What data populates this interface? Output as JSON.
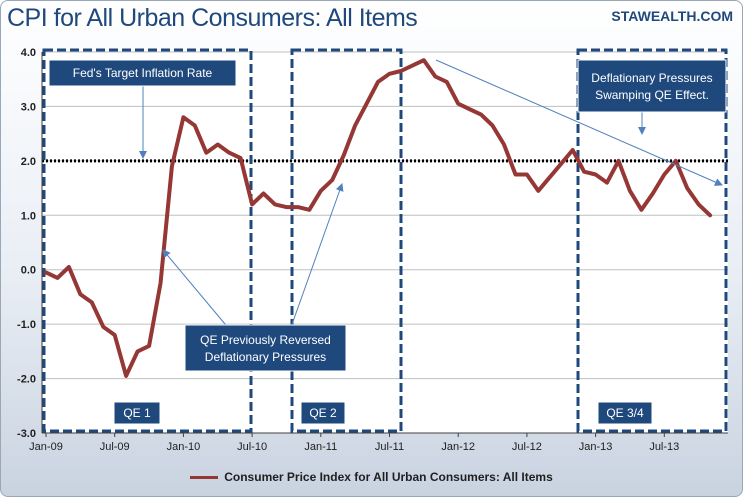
{
  "header": {
    "title": "CPI for All Urban Consumers: All Items",
    "brand": "STAWEALTH.COM"
  },
  "colors": {
    "line": "#953735",
    "axis_label": "#1f497d",
    "annotation_fill": "#1f497d",
    "dashed_box": "#1f497d",
    "arrow": "#4f81bd",
    "target_line": "#000000"
  },
  "legend": {
    "label": "Consumer Price Index for All Urban Consumers: All Items"
  },
  "chart_data": {
    "type": "line",
    "title": "CPI for All Urban Consumers: All Items",
    "xlabel": "",
    "ylabel": "",
    "ylim": [
      -3.0,
      4.0
    ],
    "grid": true,
    "y_ticks": [
      "4.0",
      "3.0",
      "2.0",
      "1.0",
      "0.0",
      "-1.0",
      "-2.0",
      "-3.0"
    ],
    "x_ticks": [
      {
        "label": "Jan-09",
        "index": 0
      },
      {
        "label": "Jul-09",
        "index": 6
      },
      {
        "label": "Jan-10",
        "index": 12
      },
      {
        "label": "Jul-10",
        "index": 18
      },
      {
        "label": "Jan-11",
        "index": 24
      },
      {
        "label": "Jul-11",
        "index": 30
      },
      {
        "label": "Jan-12",
        "index": 36
      },
      {
        "label": "Jul-12",
        "index": 42
      },
      {
        "label": "Jan-13",
        "index": 48
      },
      {
        "label": "Jul-13",
        "index": 54
      }
    ],
    "target_rate": 2.0,
    "series": [
      {
        "name": "Consumer Price Index for All Urban Consumers: All Items",
        "values": [
          -0.05,
          -0.15,
          0.05,
          -0.45,
          -0.6,
          -1.05,
          -1.2,
          -1.95,
          -1.5,
          -1.4,
          -0.25,
          1.9,
          2.8,
          2.65,
          2.15,
          2.3,
          2.15,
          2.05,
          1.2,
          1.4,
          1.2,
          1.15,
          1.15,
          1.1,
          1.45,
          1.65,
          2.1,
          2.65,
          3.05,
          3.45,
          3.6,
          3.65,
          3.75,
          3.85,
          3.55,
          3.45,
          3.05,
          2.95,
          2.85,
          2.65,
          2.3,
          1.75,
          1.75,
          1.45,
          1.7,
          1.95,
          2.2,
          1.8,
          1.75,
          1.6,
          2.0,
          1.45,
          1.1,
          1.4,
          1.75,
          2.0,
          1.5,
          1.2,
          1.0
        ]
      }
    ],
    "annotations": [
      {
        "text": "Fed's Target Inflation Rate"
      },
      {
        "text": "QE Previously Reversed",
        "text2": "Deflationary Pressures"
      },
      {
        "text": "Deflationary Pressures",
        "text2": "Swamping QE Effect."
      }
    ],
    "periods": [
      {
        "label": "QE 1"
      },
      {
        "label": "QE 2"
      },
      {
        "label": "QE 3/4"
      }
    ]
  }
}
